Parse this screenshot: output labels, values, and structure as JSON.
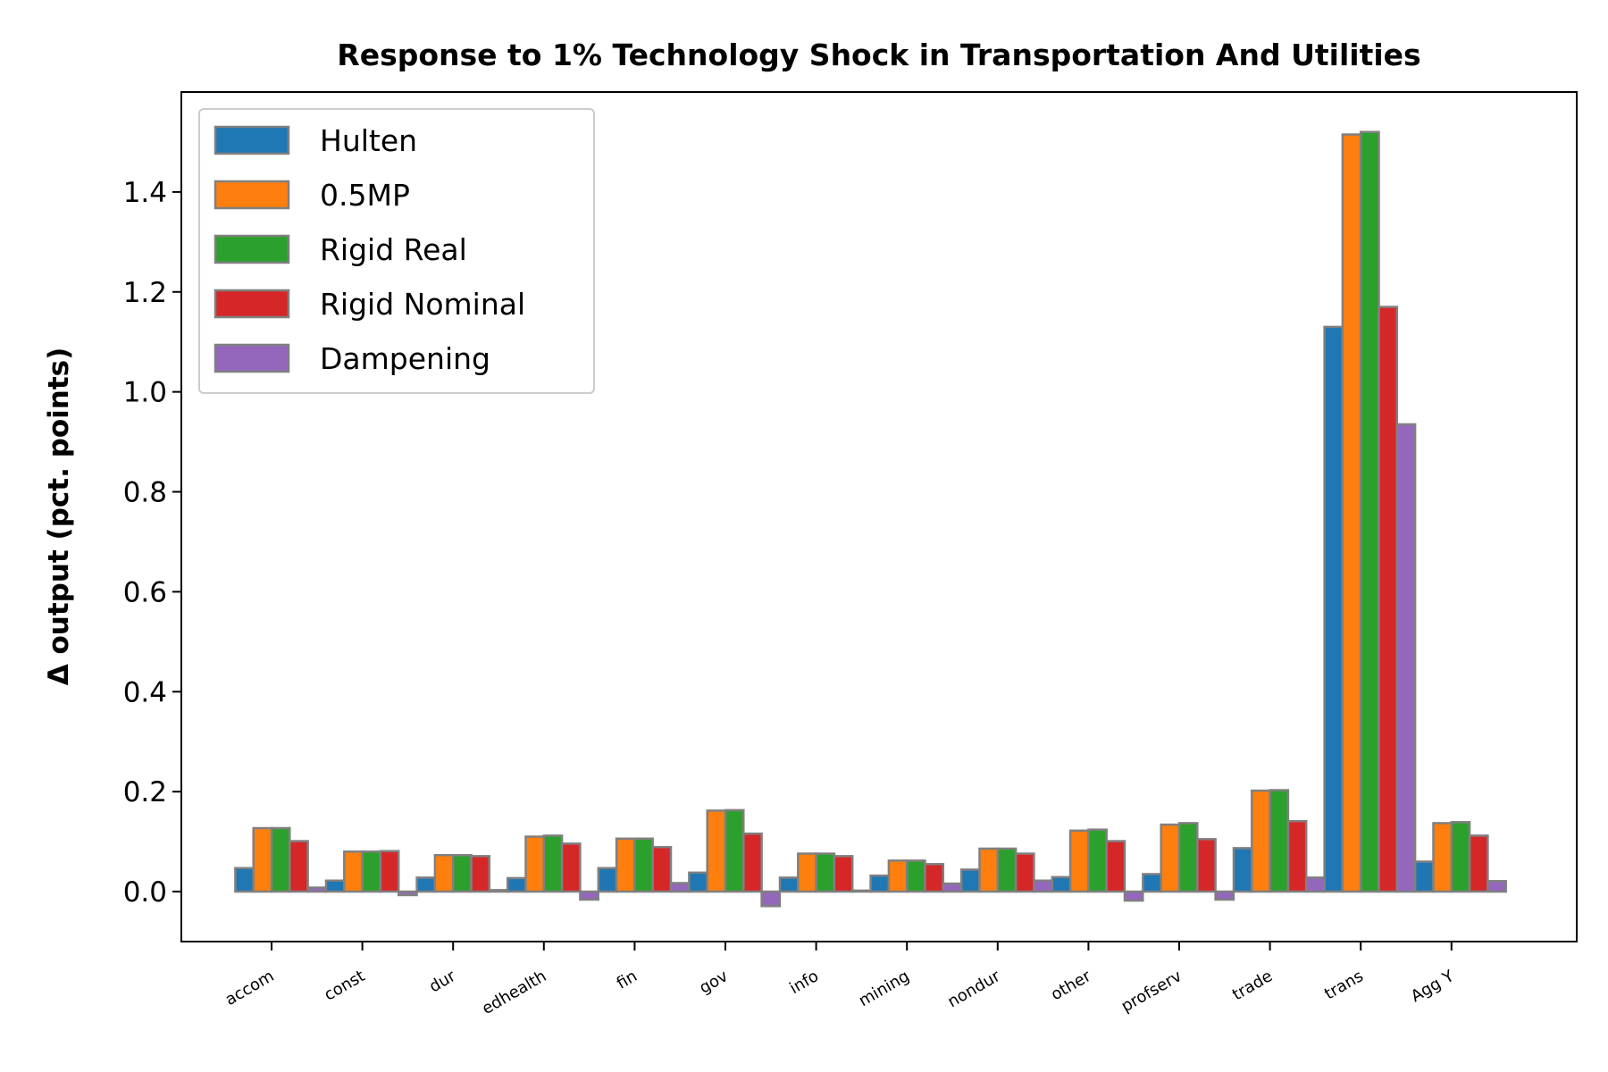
{
  "chart_data": {
    "type": "bar",
    "title": "Response to 1% Technology Shock in Transportation And Utilities",
    "xlabel": "",
    "ylabel": "Δ output (pct. points)",
    "ylim": [
      -0.1,
      1.6
    ],
    "yticks": [
      "0.0",
      "0.2",
      "0.4",
      "0.6",
      "0.8",
      "1.0",
      "1.2",
      "1.4"
    ],
    "ytick_values": [
      0,
      0.2,
      0.4,
      0.6,
      0.8,
      1.0,
      1.2,
      1.4
    ],
    "grid": false,
    "legend_position": "upper-left",
    "categories": [
      "accom",
      "const",
      "dur",
      "edhealth",
      "fin",
      "gov",
      "info",
      "mining",
      "nondur",
      "other",
      "profserv",
      "trade",
      "trans",
      "Agg Y"
    ],
    "series": [
      {
        "name": "Hulten",
        "color": "#1f77b4",
        "values": [
          0.047,
          0.022,
          0.028,
          0.027,
          0.047,
          0.038,
          0.028,
          0.032,
          0.044,
          0.029,
          0.035,
          0.087,
          1.13,
          0.06
        ]
      },
      {
        "name": "0.5MP",
        "color": "#ff7f0e",
        "values": [
          0.127,
          0.08,
          0.073,
          0.11,
          0.106,
          0.162,
          0.076,
          0.062,
          0.086,
          0.122,
          0.134,
          0.202,
          1.515,
          0.137
        ]
      },
      {
        "name": "Rigid Real",
        "color": "#2ca02c",
        "values": [
          0.127,
          0.08,
          0.073,
          0.112,
          0.106,
          0.163,
          0.076,
          0.062,
          0.086,
          0.124,
          0.137,
          0.203,
          1.52,
          0.139
        ]
      },
      {
        "name": "Rigid Nominal",
        "color": "#d62728",
        "values": [
          0.101,
          0.081,
          0.071,
          0.096,
          0.089,
          0.116,
          0.071,
          0.055,
          0.076,
          0.101,
          0.105,
          0.141,
          1.17,
          0.112
        ]
      },
      {
        "name": "Dampening",
        "color": "#9467bd",
        "values": [
          0.008,
          -0.007,
          0.003,
          -0.016,
          0.017,
          -0.029,
          0.002,
          0.016,
          0.022,
          -0.018,
          -0.016,
          0.028,
          0.935,
          0.021
        ]
      }
    ]
  }
}
